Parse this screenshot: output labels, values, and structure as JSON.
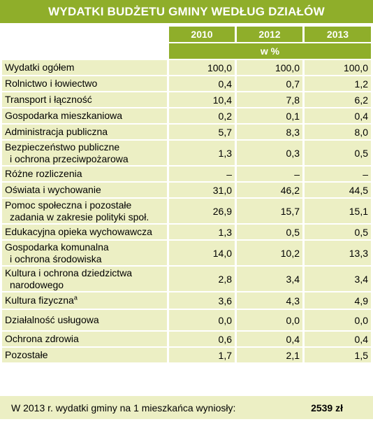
{
  "title": "WYDATKI BUDŻETU GMINY WEDŁUG DZIAŁÓW",
  "years": [
    "2010",
    "2012",
    "2013"
  ],
  "unit": "w %",
  "rows": [
    {
      "lines": [
        "Wydatki ogółem"
      ],
      "values": [
        "100,0",
        "100,0",
        "100,0"
      ]
    },
    {
      "lines": [
        "Rolnictwo i łowiectwo"
      ],
      "values": [
        "0,4",
        "0,7",
        "1,2"
      ]
    },
    {
      "lines": [
        "Transport i łączność"
      ],
      "values": [
        "10,4",
        "7,8",
        "6,2"
      ]
    },
    {
      "lines": [
        "Gospodarka mieszkaniowa"
      ],
      "values": [
        "0,2",
        "0,1",
        "0,4"
      ]
    },
    {
      "lines": [
        "Administracja publiczna"
      ],
      "values": [
        "5,7",
        "8,3",
        "8,0"
      ]
    },
    {
      "lines": [
        "Bezpieczeństwo publiczne",
        "i ochrona przeciwpożarowa"
      ],
      "values": [
        "1,3",
        "0,3",
        "0,5"
      ]
    },
    {
      "lines": [
        "Różne rozliczenia"
      ],
      "values": [
        "–",
        "–",
        "–"
      ]
    },
    {
      "lines": [
        "Oświata i wychowanie"
      ],
      "values": [
        "31,0",
        "46,2",
        "44,5"
      ]
    },
    {
      "lines": [
        "Pomoc społeczna i pozostałe",
        "zadania w zakresie polityki społ."
      ],
      "values": [
        "26,9",
        "15,7",
        "15,1"
      ]
    },
    {
      "lines": [
        "Edukacyjna opieka wychowawcza"
      ],
      "values": [
        "1,3",
        "0,5",
        "0,5"
      ]
    },
    {
      "lines": [
        "Gospodarka komunalna",
        "i ochrona środowiska"
      ],
      "values": [
        "14,0",
        "10,2",
        "13,3"
      ]
    },
    {
      "lines": [
        "Kultura i ochrona dziedzictwa",
        "narodowego"
      ],
      "values": [
        "2,8",
        "3,4",
        "3,4"
      ]
    },
    {
      "lines": [
        "Kultura fizyczna"
      ],
      "sup": "a",
      "values": [
        "3,6",
        "4,3",
        "4,9"
      ]
    },
    {
      "lines": [
        "Działalność usługowa"
      ],
      "values": [
        "0,0",
        "0,0",
        "0,0"
      ]
    },
    {
      "lines": [
        "Ochrona zdrowia"
      ],
      "values": [
        "0,6",
        "0,4",
        "0,4"
      ]
    },
    {
      "lines": [
        "Pozostałe"
      ],
      "values": [
        "1,7",
        "2,1",
        "1,5"
      ]
    }
  ],
  "footer": {
    "text": "W 2013 r. wydatki gminy na 1 mieszkańca wyniosły:",
    "value": "2539 zł"
  }
}
